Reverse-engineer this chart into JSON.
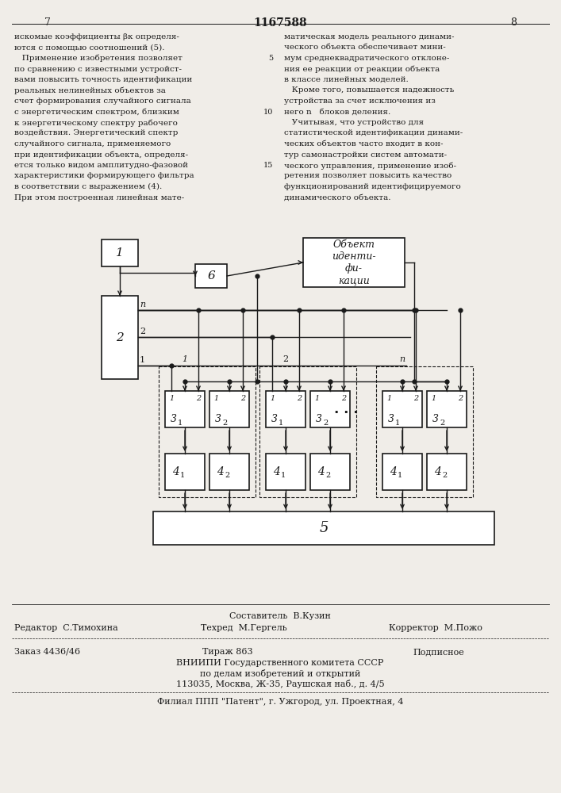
{
  "page_number_left": "7",
  "page_number_center": "1167588",
  "page_number_right": "8",
  "bg_color": "#f0ede8",
  "text_color": "#1a1a1a",
  "left_column_text": [
    "искомые коэффициенты βк определя-",
    "ются с помощью соотношений (5).",
    "   Применение изобретения позволяет",
    "по сравнению с известными устройст-",
    "вами повысить точность идентификации",
    "реальных нелинейных объектов за",
    "счет формирования случайного сигнала",
    "с энергетическим спектром, близким",
    "к энергетическому спектру рабочего",
    "воздействия. Энергетический спектр",
    "случайного сигнала, применяемого",
    "при идентификации объекта, определя-",
    "ется только видом амплитудно-фазовой",
    "характеристики формирующего фильтра",
    "в соответствии с выражением (4).",
    "При этом построенная линейная мате-"
  ],
  "right_column_text": [
    "матическая модель реального динами-",
    "ческого объекта обеспечивает мини-",
    "мум среднеквадратического отклоне-",
    "ния ее реакции от реакции объекта",
    "в классе линейных моделей.",
    "   Кроме того, повышается надежность",
    "устройства за счет исключения из",
    "него n   блоков деления.",
    "   Учитывая, что устройство для",
    "статистической идентификации динами-",
    "ческих объектов часто входит в кон-",
    "тур самонастройки систем автомати-",
    "ческого управления, применение изоб-",
    "ретения позволяет повысить качество",
    "функционирований идентифицируемого",
    "динамического объекта."
  ],
  "footer_composer": "Составитель  В.Кузин",
  "footer_editor": "Редактор  С.Тимохина",
  "footer_techred": "Техред  М.Гергель",
  "footer_corrector": "Корректор  М.Пожо",
  "footer_order": "Заказ 4436/46",
  "footer_tirazh": "Тираж 863",
  "footer_podpisnoe": "Подписное",
  "footer_vniip1": "ВНИИПИ Государственного комитета СССР",
  "footer_vniip2": "по делам изобретений и открытий",
  "footer_vniip3": "113035, Москва, Ж-35, Раушская наб., д. 4/5",
  "footer_filial": "Филиал ППП \"Патент\", г. Ужгород, ул. Проектная, 4"
}
